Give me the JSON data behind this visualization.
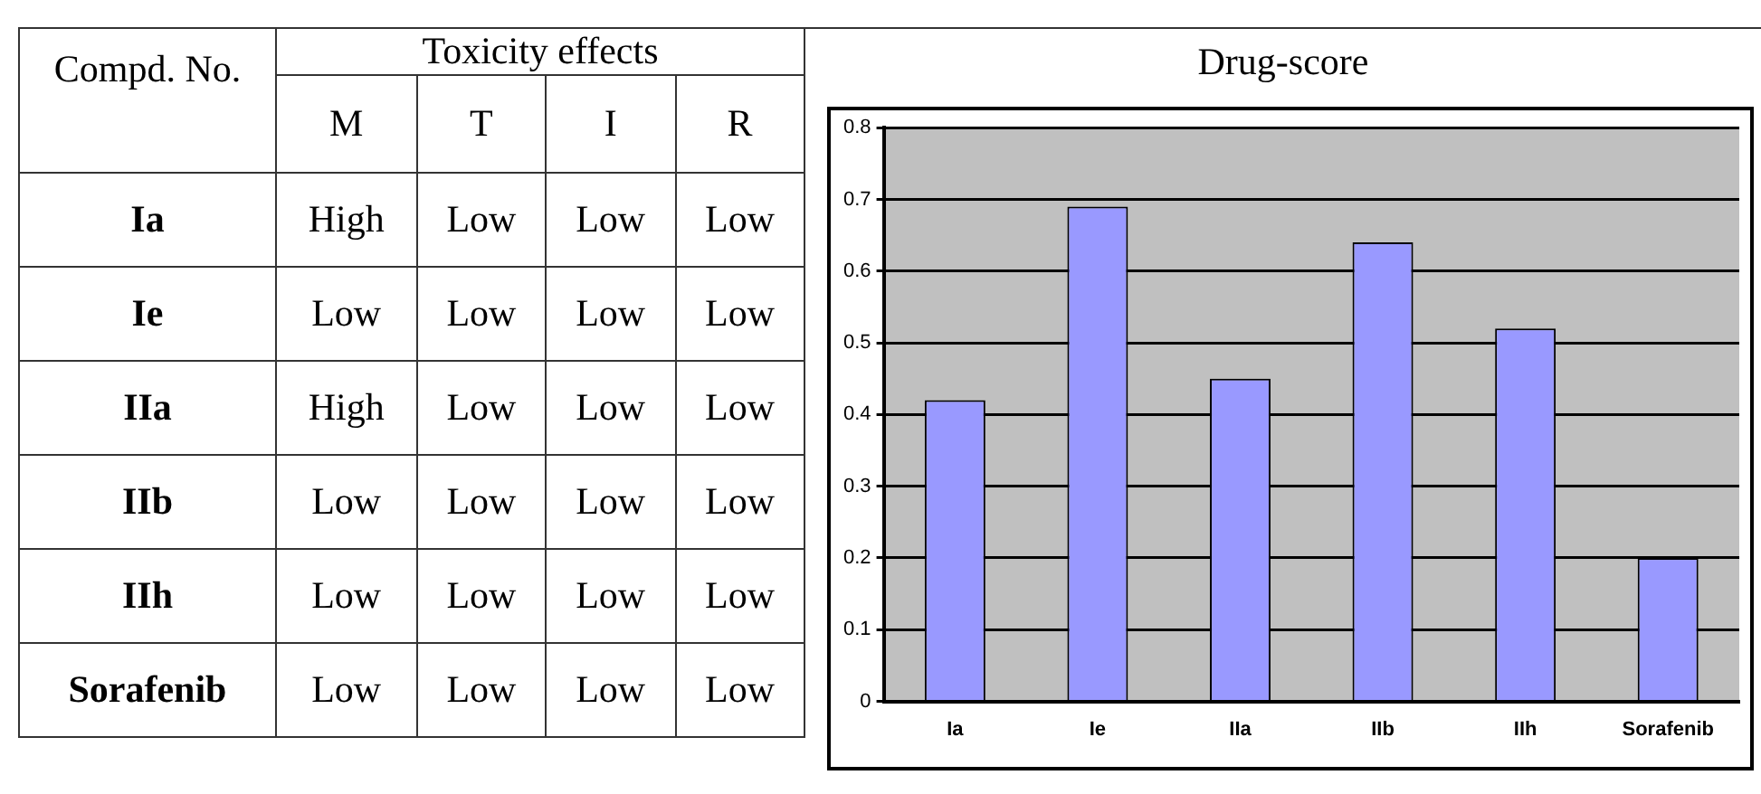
{
  "chart_data": [
    {
      "type": "other",
      "title": "Toxicity effects",
      "ylabel": "Compd. No.",
      "categories": [
        "M",
        "T",
        "I",
        "R"
      ],
      "y_categories": [
        "Ia",
        "Ie",
        "IIa",
        "IIb",
        "IIh",
        "Sorafenib"
      ],
      "cell_labels": [
        [
          "High",
          "Low",
          "Low",
          "Low"
        ],
        [
          "Low",
          "Low",
          "Low",
          "Low"
        ],
        [
          "High",
          "Low",
          "Low",
          "Low"
        ],
        [
          "Low",
          "Low",
          "Low",
          "Low"
        ],
        [
          "Low",
          "Low",
          "Low",
          "Low"
        ],
        [
          "Low",
          "Low",
          "Low",
          "Low"
        ]
      ]
    },
    {
      "type": "bar",
      "title": "Drug-score",
      "categories": [
        "Ia",
        "Ie",
        "IIa",
        "IIb",
        "IIh",
        "Sorafenib"
      ],
      "values": [
        0.42,
        0.69,
        0.45,
        0.64,
        0.52,
        0.2
      ],
      "color": "#9999ff",
      "ylim": [
        0,
        0.8
      ],
      "yticks": [
        0,
        0.1,
        0.2,
        0.3,
        0.4,
        0.5,
        0.6,
        0.7,
        0.8
      ],
      "grid": "y",
      "legend": false
    }
  ]
}
